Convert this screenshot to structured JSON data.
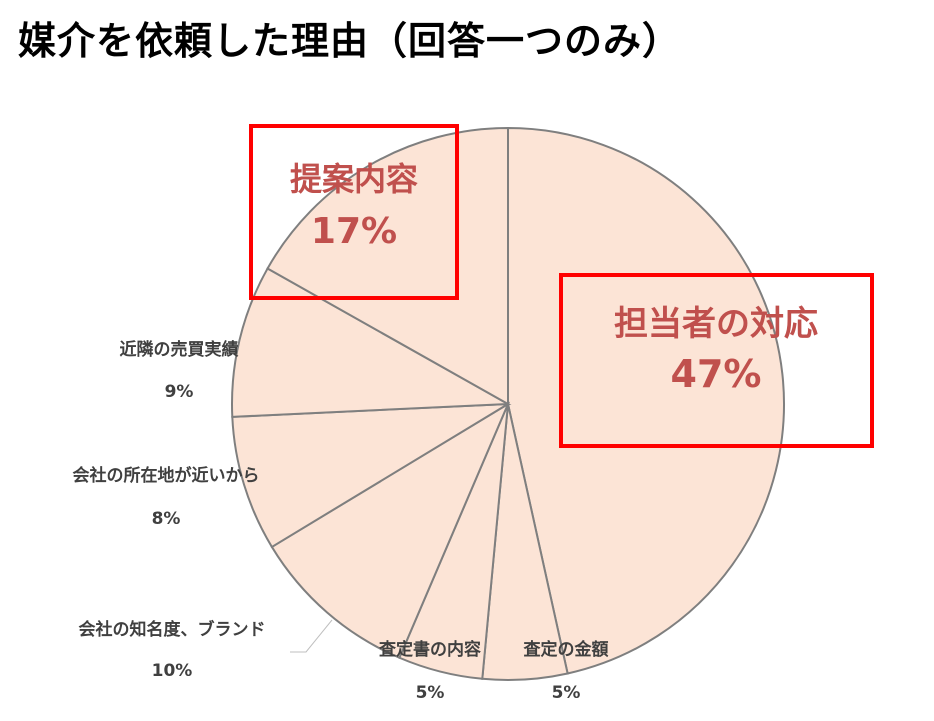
{
  "page_title": "媒介を依頼した理由（回答一つのみ）",
  "chart_data": {
    "type": "pie",
    "title": "媒介を依頼した理由（回答一つのみ）",
    "slices": [
      {
        "label": "担当者の対応",
        "value": 47,
        "value_label": "47%"
      },
      {
        "label": "査定の金額",
        "value": 5,
        "value_label": "5%"
      },
      {
        "label": "査定書の内容",
        "value": 5,
        "value_label": "5%"
      },
      {
        "label": "会社の知名度、ブランド",
        "value": 10,
        "value_label": "10%"
      },
      {
        "label": "会社の所在地が近いから",
        "value": 8,
        "value_label": "8%"
      },
      {
        "label": "近隣の売買実績",
        "value": 9,
        "value_label": "9%"
      },
      {
        "label": "提案内容",
        "value": 17,
        "value_label": "17%"
      }
    ],
    "highlighted": [
      "担当者の対応",
      "提案内容"
    ],
    "colors": {
      "fill": "#fce4d6",
      "stroke": "#7f7f7f",
      "highlight_box": "#ff0000",
      "highlight_text": "#c0504d",
      "label_text": "#404040"
    }
  }
}
